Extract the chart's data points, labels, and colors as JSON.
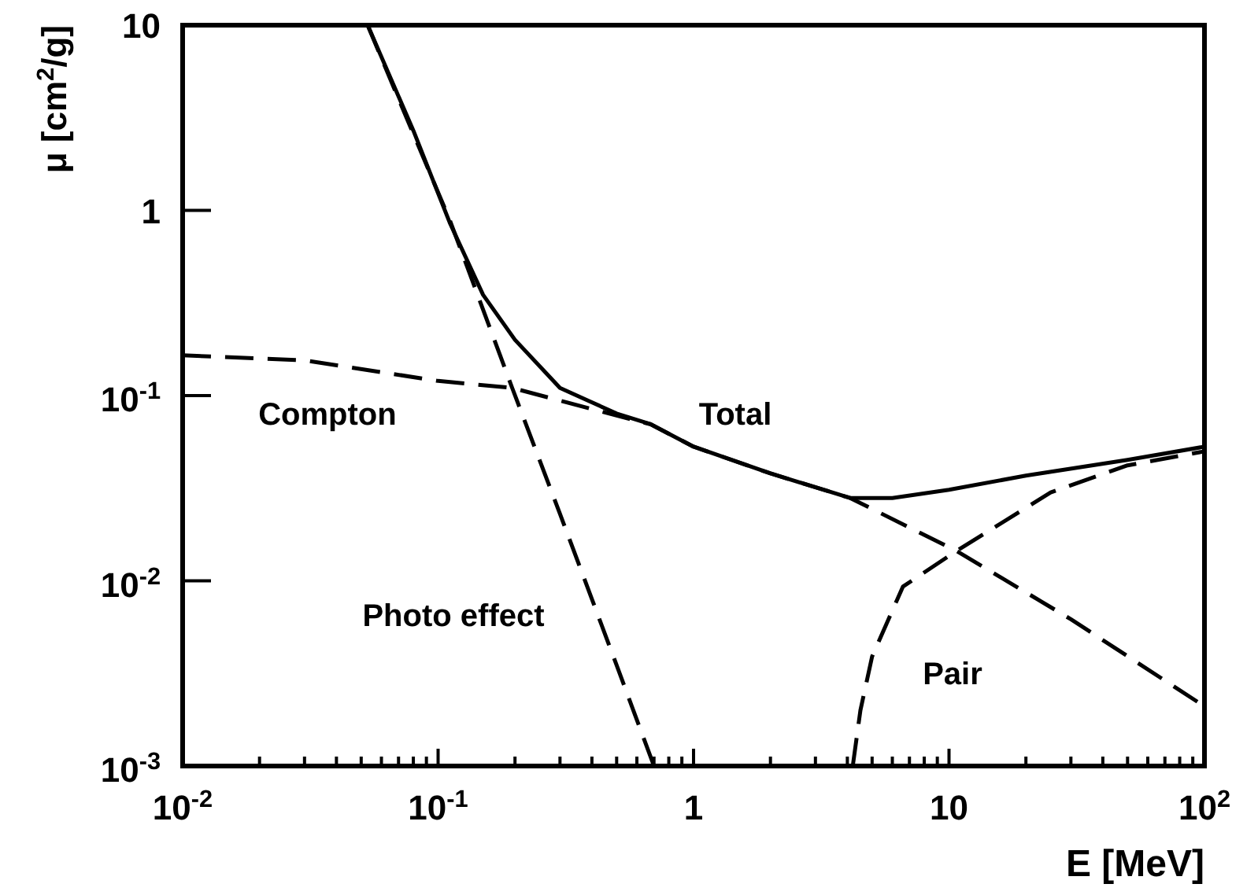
{
  "chart_data": {
    "type": "line",
    "xlabel": "E [MeV]",
    "ylabel": "μ [cm$^{2}$/g]",
    "log": "xy",
    "grid": false,
    "xlim": [
      0.01,
      100
    ],
    "ylim": [
      0.001,
      10
    ],
    "xticks": [
      {
        "value": 0.01,
        "label": "10$^{-2}$"
      },
      {
        "value": 0.02,
        "label": null
      },
      {
        "value": 0.03,
        "label": null
      },
      {
        "value": 0.04,
        "label": null
      },
      {
        "value": 0.05,
        "label": null
      },
      {
        "value": 0.06,
        "label": null
      },
      {
        "value": 0.07,
        "label": null
      },
      {
        "value": 0.08,
        "label": null
      },
      {
        "value": 0.09,
        "label": null
      },
      {
        "value": 0.1,
        "label": "10$^{-1}$"
      },
      {
        "value": 0.2,
        "label": null
      },
      {
        "value": 0.3,
        "label": null
      },
      {
        "value": 0.4,
        "label": null
      },
      {
        "value": 0.5,
        "label": null
      },
      {
        "value": 0.6,
        "label": null
      },
      {
        "value": 0.7,
        "label": null
      },
      {
        "value": 0.8,
        "label": null
      },
      {
        "value": 0.9,
        "label": null
      },
      1,
      {
        "value": 2,
        "label": null
      },
      {
        "value": 3,
        "label": null
      },
      {
        "value": 4,
        "label": null
      },
      {
        "value": 5,
        "label": null
      },
      {
        "value": 6,
        "label": null
      },
      {
        "value": 7,
        "label": null
      },
      {
        "value": 8,
        "label": null
      },
      {
        "value": 9,
        "label": null
      },
      10,
      {
        "value": 20,
        "label": null
      },
      {
        "value": 30,
        "label": null
      },
      {
        "value": 40,
        "label": null
      },
      {
        "value": 50,
        "label": null
      },
      {
        "value": 60,
        "label": null
      },
      {
        "value": 70,
        "label": null
      },
      {
        "value": 80,
        "label": null
      },
      {
        "value": 90,
        "label": null
      },
      {
        "value": 100,
        "label": "10$^{2}$"
      }
    ],
    "yticks": [
      {
        "value": 0.001,
        "label": "10$^{-3}$"
      },
      {
        "value": 0.01,
        "label": "10$^{-2}$"
      },
      {
        "value": 0.1,
        "label": "10$^{-1}$"
      },
      1,
      10
    ],
    "series": [
      {
        "color": "#000000",
        "line_style": "solid",
        "x": [
          0.053,
          0.08,
          0.111,
          0.15,
          0.2,
          0.3,
          0.5,
          0.68,
          1,
          2,
          4.1,
          6,
          10,
          20,
          50,
          100
        ],
        "values": [
          10,
          2.7,
          0.86,
          0.35,
          0.2,
          0.11,
          0.08,
          0.07,
          0.053,
          0.038,
          0.028,
          0.028,
          0.031,
          0.037,
          0.045,
          0.053
        ]
      },
      {
        "color": "#000000",
        "line_style": "dashed",
        "x": [
          0.053,
          0.07,
          0.111,
          0.195,
          0.3,
          0.5,
          0.7
        ],
        "values": [
          10,
          4,
          0.89,
          0.11,
          0.023,
          0.0035,
          0.001
        ]
      },
      {
        "color": "#000000",
        "line_style": "dashed",
        "x": [
          0.01,
          0.03,
          0.1,
          0.195,
          0.5,
          0.68,
          1,
          2,
          4.1,
          10.7,
          30,
          100
        ],
        "values": [
          0.165,
          0.155,
          0.12,
          0.11,
          0.078,
          0.07,
          0.053,
          0.038,
          0.028,
          0.0145,
          0.0062,
          0.0021
        ]
      },
      {
        "color": "#000000",
        "line_style": "dashed",
        "x": [
          4.2,
          4.5,
          5,
          6.6,
          10.7,
          25,
          50,
          100
        ],
        "values": [
          0.001,
          0.002,
          0.0039,
          0.0093,
          0.0145,
          0.03,
          0.042,
          0.05
        ]
      }
    ],
    "annotations": [
      "Total",
      "Compton",
      "Photo effect",
      "Pair"
    ]
  }
}
